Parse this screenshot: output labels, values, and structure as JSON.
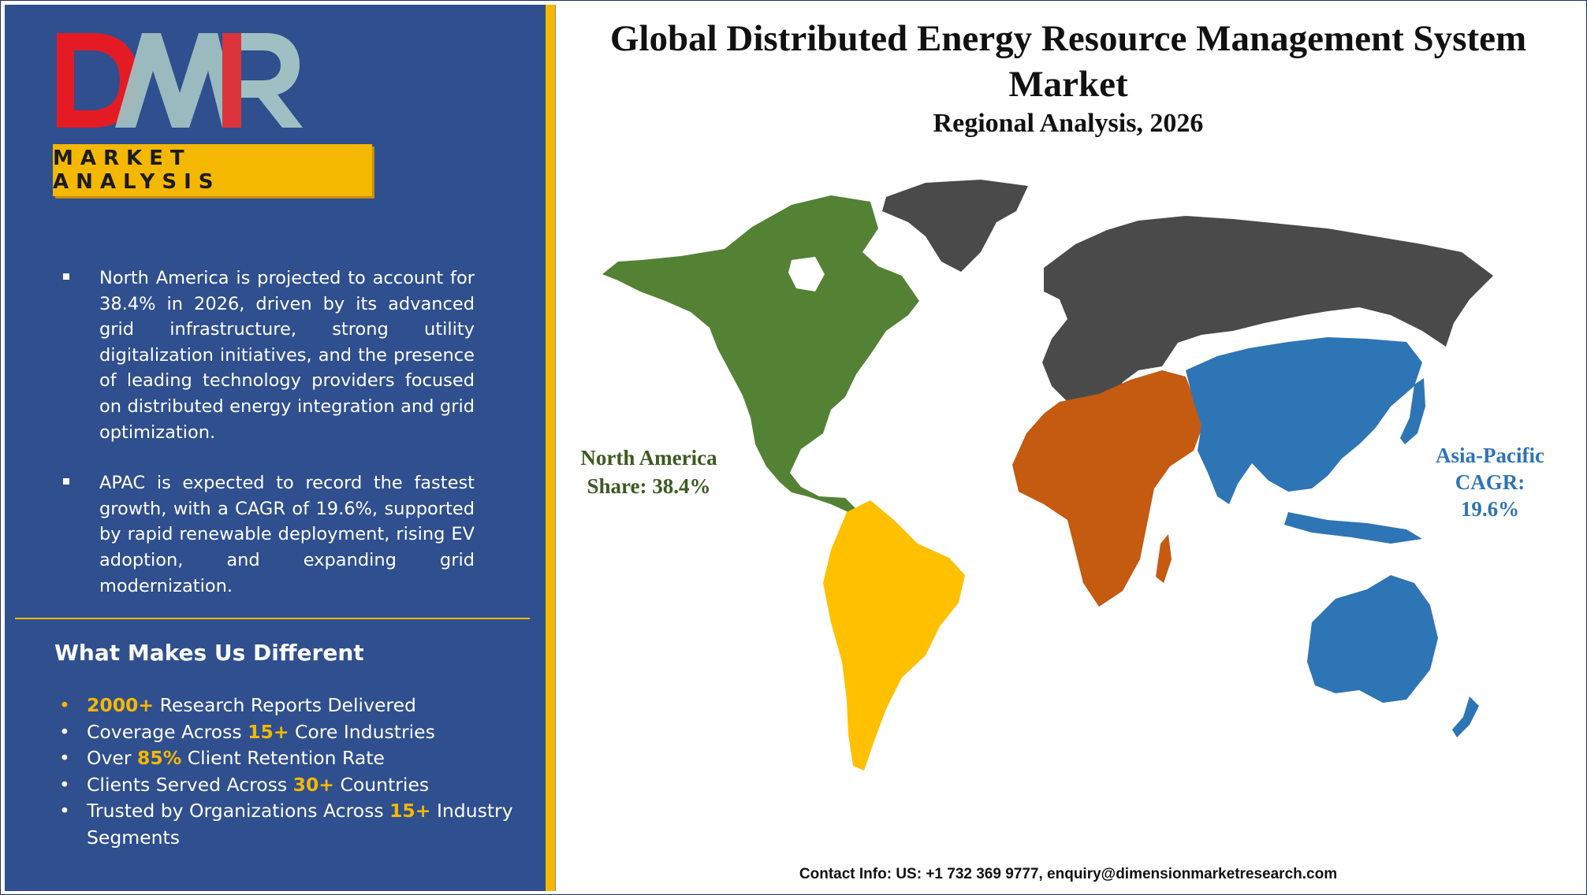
{
  "logo": {
    "text": "DMR",
    "tagline": "MARKET ANALYSIS"
  },
  "insights": [
    "North America is projected to account for 38.4% in 2026, driven by its advanced grid infrastructure, strong utility digitalization initiatives, and the presence of leading technology providers focused on distributed energy integration and grid optimization.",
    "APAC is expected to record the fastest growth, with a CAGR of 19.6%, supported by rapid renewable deployment, rising EV adoption, and expanding grid modernization."
  ],
  "different": {
    "title": "What Makes Us Different",
    "items": [
      {
        "hl": "2000+",
        "pre": "",
        "post": " Research Reports Delivered"
      },
      {
        "pre": "Coverage Across ",
        "hl": "15+",
        "post": " Core Industries"
      },
      {
        "pre": "Over ",
        "hl": "85%",
        "post": " Client Retention Rate"
      },
      {
        "pre": "Clients Served Across ",
        "hl": "30+",
        "post": " Countries"
      },
      {
        "pre": "Trusted by Organizations Across ",
        "hl": "15+",
        "post": " Industry Segments"
      }
    ]
  },
  "title": "Global Distributed Energy Resource Management System Market",
  "subtitle": "Regional Analysis, 2026",
  "regions": {
    "north_america": {
      "name": "North America",
      "stat": "Share: 38.4%",
      "color": "#548235"
    },
    "asia_pacific": {
      "name": "Asia-Pacific",
      "stat_label": "CAGR:",
      "stat_value": "19.6%",
      "color": "#2e75b6"
    },
    "south_america": {
      "color": "#ffc000"
    },
    "mea": {
      "color": "#c55a11"
    },
    "europe_other": {
      "color": "#4a4a4a"
    }
  },
  "contact": "Contact Info: US: +1 732 369 9777, enquiry@dimensionmarketresearch.com",
  "colors": {
    "panel": "#2f4f8f",
    "accent": "#f5b800"
  }
}
